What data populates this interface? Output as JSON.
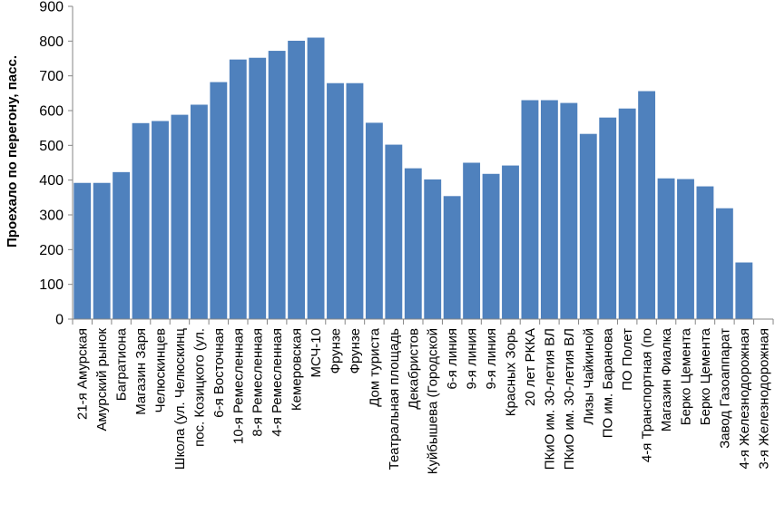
{
  "chart_data": {
    "type": "bar",
    "title": "",
    "xlabel": "",
    "ylabel": "Проехало по перегону, пасс.",
    "ylim": [
      0,
      900
    ],
    "yticks": [
      0,
      100,
      200,
      300,
      400,
      500,
      600,
      700,
      800,
      900
    ],
    "grid": false,
    "legend": "none",
    "bar_color": "#4f81bd",
    "categories": [
      "21-я Амурская",
      "Амурский рынок",
      "Багратиона",
      "Магазин Заря",
      "Челюскинцев",
      "Школа (ул. Челюскинц",
      "пос. Козицкого (ул.",
      "6-я Восточная",
      "10-я Ремесленная",
      "8-я Ремесленная",
      "4-я Ремесленная",
      "Кемеровская",
      "МСЧ-10",
      "Фрунзе",
      "Фрунзе",
      "Дом туриста",
      "Театральная площадь",
      "Декабристов",
      "Куйбышева (Городской",
      "6-я линия",
      "9-я линия",
      "9-я линия",
      "Красных Зорь",
      "20 лет РККА",
      "ПКиО им. 30-летия ВЛ",
      "ПКиО им. 30-летия ВЛ",
      "Лизы Чайкиной",
      "ПО им. Баранова",
      "ПО Полет",
      "4-я Транспортная (по",
      "Магазин Фиалка",
      "Берко Цемента",
      "Берко Цемента",
      "Завод Газоаппарат",
      "4-я Железнодорожная",
      "3-я Железнодорожная"
    ],
    "values": [
      392,
      392,
      423,
      564,
      570,
      588,
      617,
      682,
      747,
      752,
      772,
      801,
      810,
      679,
      679,
      565,
      502,
      434,
      402,
      354,
      450,
      418,
      442,
      630,
      630,
      622,
      533,
      580,
      606,
      656,
      405,
      403,
      382,
      319,
      163,
      0
    ]
  }
}
